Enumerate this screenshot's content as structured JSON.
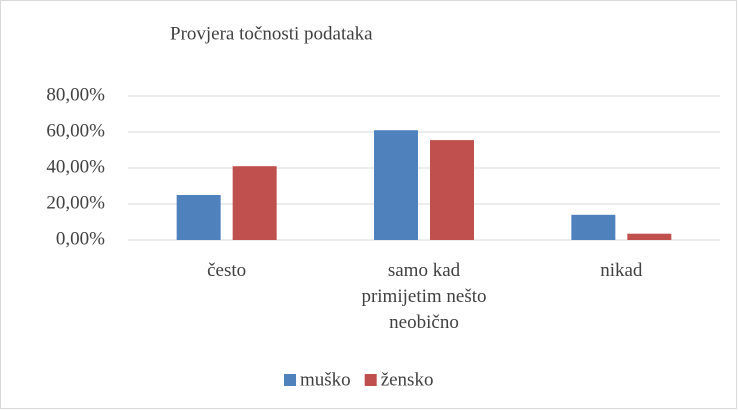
{
  "chart_data": {
    "type": "bar",
    "title": "Provjera točnosti podataka",
    "categories": [
      "često",
      "samo kad primijetim nešto neobično",
      "nikad"
    ],
    "series": [
      {
        "name": "muško",
        "color": "#4f81bd",
        "values": [
          25,
          61,
          14
        ]
      },
      {
        "name": "žensko",
        "color": "#c0504d",
        "values": [
          41,
          55.5,
          3.5
        ]
      }
    ],
    "ylim": [
      0,
      80
    ],
    "yticks": [
      {
        "value": 0,
        "label": "0,00%"
      },
      {
        "value": 20,
        "label": "20,00%"
      },
      {
        "value": 40,
        "label": "40,00%"
      },
      {
        "value": 60,
        "label": "60,00%"
      },
      {
        "value": 80,
        "label": "80,00%"
      }
    ],
    "grid": true,
    "legend": "bottom"
  }
}
